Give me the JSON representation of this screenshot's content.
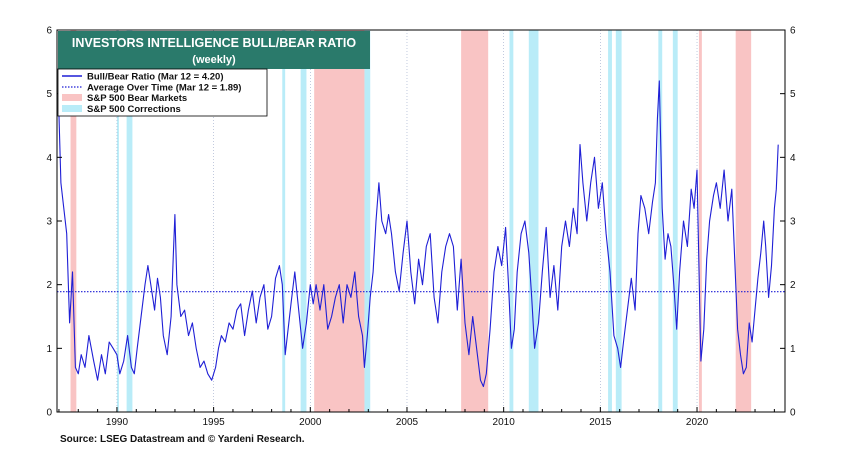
{
  "chart_data": {
    "type": "line",
    "title": "INVESTORS INTELLIGENCE BULL/BEAR RATIO",
    "subtitle": "(weekly)",
    "source": "Source: LSEG Datastream and © Yardeni Research.",
    "xlim": [
      1986.9,
      2024.55
    ],
    "ylim": [
      0,
      6
    ],
    "x_ticks": [
      1990,
      1995,
      2000,
      2005,
      2010,
      2015,
      2020
    ],
    "y_ticks": [
      0,
      1,
      2,
      3,
      4,
      5,
      6
    ],
    "grid": "vertical dotted at year ticks",
    "legend_position": "top-left",
    "legend": [
      {
        "label": "Bull/Bear Ratio (Mar 12 = 4.20)",
        "kind": "line",
        "color": "#1f1fd6"
      },
      {
        "label": "Average Over Time (Mar 12 = 1.89)",
        "kind": "dotted",
        "color": "#1f1fd6"
      },
      {
        "label": "S&P 500 Bear Markets",
        "kind": "band",
        "color": "#f9c4c4"
      },
      {
        "label": "S&P 500 Corrections",
        "kind": "band",
        "color": "#b9ecf8"
      }
    ],
    "series": [
      {
        "name": "Bull/Bear Ratio (Mar 12 = 4.20)",
        "color": "#1f1fd6",
        "points": [
          [
            1987.0,
            4.7
          ],
          [
            1987.1,
            3.6
          ],
          [
            1987.25,
            3.2
          ],
          [
            1987.4,
            2.8
          ],
          [
            1987.55,
            1.4
          ],
          [
            1987.7,
            2.2
          ],
          [
            1987.85,
            0.7
          ],
          [
            1988.0,
            0.6
          ],
          [
            1988.15,
            0.9
          ],
          [
            1988.35,
            0.7
          ],
          [
            1988.55,
            1.2
          ],
          [
            1988.8,
            0.8
          ],
          [
            1989.0,
            0.5
          ],
          [
            1989.2,
            0.9
          ],
          [
            1989.4,
            0.6
          ],
          [
            1989.6,
            1.1
          ],
          [
            1989.8,
            1.0
          ],
          [
            1990.0,
            0.9
          ],
          [
            1990.15,
            0.6
          ],
          [
            1990.35,
            0.8
          ],
          [
            1990.55,
            1.2
          ],
          [
            1990.75,
            0.7
          ],
          [
            1990.9,
            0.6
          ],
          [
            1991.05,
            1.0
          ],
          [
            1991.25,
            1.5
          ],
          [
            1991.45,
            2.0
          ],
          [
            1991.6,
            2.3
          ],
          [
            1991.75,
            2.0
          ],
          [
            1991.95,
            1.6
          ],
          [
            1992.1,
            2.1
          ],
          [
            1992.25,
            1.8
          ],
          [
            1992.4,
            1.2
          ],
          [
            1992.6,
            0.9
          ],
          [
            1992.8,
            1.5
          ],
          [
            1992.92,
            2.5
          ],
          [
            1993.0,
            3.1
          ],
          [
            1993.1,
            2.0
          ],
          [
            1993.3,
            1.5
          ],
          [
            1993.5,
            1.6
          ],
          [
            1993.7,
            1.2
          ],
          [
            1993.9,
            1.4
          ],
          [
            1994.1,
            1.0
          ],
          [
            1994.3,
            0.7
          ],
          [
            1994.5,
            0.8
          ],
          [
            1994.7,
            0.6
          ],
          [
            1994.9,
            0.5
          ],
          [
            1995.1,
            0.7
          ],
          [
            1995.25,
            1.0
          ],
          [
            1995.4,
            1.2
          ],
          [
            1995.6,
            1.1
          ],
          [
            1995.8,
            1.4
          ],
          [
            1996.0,
            1.3
          ],
          [
            1996.2,
            1.6
          ],
          [
            1996.4,
            1.7
          ],
          [
            1996.6,
            1.2
          ],
          [
            1996.8,
            1.6
          ],
          [
            1997.0,
            1.9
          ],
          [
            1997.2,
            1.4
          ],
          [
            1997.4,
            1.8
          ],
          [
            1997.6,
            2.0
          ],
          [
            1997.8,
            1.3
          ],
          [
            1998.0,
            1.5
          ],
          [
            1998.2,
            2.1
          ],
          [
            1998.4,
            2.3
          ],
          [
            1998.55,
            2.0
          ],
          [
            1998.7,
            0.9
          ],
          [
            1998.85,
            1.3
          ],
          [
            1999.0,
            1.7
          ],
          [
            1999.2,
            2.2
          ],
          [
            1999.4,
            1.6
          ],
          [
            1999.6,
            1.0
          ],
          [
            1999.8,
            1.4
          ],
          [
            2000.0,
            2.0
          ],
          [
            2000.15,
            1.7
          ],
          [
            2000.3,
            2.0
          ],
          [
            2000.5,
            1.6
          ],
          [
            2000.7,
            2.0
          ],
          [
            2000.9,
            1.3
          ],
          [
            2001.1,
            1.5
          ],
          [
            2001.3,
            1.8
          ],
          [
            2001.5,
            2.0
          ],
          [
            2001.7,
            1.4
          ],
          [
            2001.9,
            2.0
          ],
          [
            2002.1,
            1.8
          ],
          [
            2002.3,
            2.2
          ],
          [
            2002.5,
            1.5
          ],
          [
            2002.7,
            1.2
          ],
          [
            2002.8,
            0.7
          ],
          [
            2002.95,
            1.2
          ],
          [
            2003.1,
            1.8
          ],
          [
            2003.25,
            2.2
          ],
          [
            2003.4,
            3.0
          ],
          [
            2003.55,
            3.6
          ],
          [
            2003.7,
            3.0
          ],
          [
            2003.9,
            2.8
          ],
          [
            2004.05,
            3.1
          ],
          [
            2004.2,
            2.8
          ],
          [
            2004.4,
            2.2
          ],
          [
            2004.6,
            1.9
          ],
          [
            2004.8,
            2.5
          ],
          [
            2005.0,
            3.0
          ],
          [
            2005.2,
            2.2
          ],
          [
            2005.4,
            1.7
          ],
          [
            2005.6,
            2.4
          ],
          [
            2005.8,
            2.0
          ],
          [
            2006.0,
            2.6
          ],
          [
            2006.2,
            2.8
          ],
          [
            2006.4,
            1.8
          ],
          [
            2006.6,
            1.4
          ],
          [
            2006.8,
            2.2
          ],
          [
            2007.0,
            2.6
          ],
          [
            2007.2,
            2.8
          ],
          [
            2007.4,
            2.6
          ],
          [
            2007.6,
            1.6
          ],
          [
            2007.8,
            2.4
          ],
          [
            2008.0,
            1.4
          ],
          [
            2008.2,
            0.9
          ],
          [
            2008.4,
            1.5
          ],
          [
            2008.6,
            1.0
          ],
          [
            2008.8,
            0.5
          ],
          [
            2008.95,
            0.4
          ],
          [
            2009.1,
            0.6
          ],
          [
            2009.3,
            1.3
          ],
          [
            2009.5,
            2.2
          ],
          [
            2009.7,
            2.6
          ],
          [
            2009.9,
            2.3
          ],
          [
            2010.1,
            2.9
          ],
          [
            2010.25,
            2.0
          ],
          [
            2010.4,
            1.0
          ],
          [
            2010.55,
            1.3
          ],
          [
            2010.7,
            2.2
          ],
          [
            2010.9,
            2.8
          ],
          [
            2011.1,
            3.0
          ],
          [
            2011.3,
            2.5
          ],
          [
            2011.45,
            1.8
          ],
          [
            2011.6,
            1.0
          ],
          [
            2011.8,
            1.4
          ],
          [
            2012.0,
            2.2
          ],
          [
            2012.2,
            2.9
          ],
          [
            2012.4,
            1.8
          ],
          [
            2012.6,
            2.3
          ],
          [
            2012.8,
            1.6
          ],
          [
            2013.0,
            2.6
          ],
          [
            2013.2,
            3.0
          ],
          [
            2013.4,
            2.6
          ],
          [
            2013.6,
            3.2
          ],
          [
            2013.8,
            2.8
          ],
          [
            2013.95,
            4.2
          ],
          [
            2014.1,
            3.6
          ],
          [
            2014.3,
            3.0
          ],
          [
            2014.5,
            3.6
          ],
          [
            2014.7,
            4.0
          ],
          [
            2014.9,
            3.2
          ],
          [
            2015.1,
            3.6
          ],
          [
            2015.3,
            2.8
          ],
          [
            2015.5,
            2.2
          ],
          [
            2015.7,
            1.2
          ],
          [
            2015.9,
            1.0
          ],
          [
            2016.05,
            0.7
          ],
          [
            2016.2,
            1.1
          ],
          [
            2016.4,
            1.6
          ],
          [
            2016.6,
            2.1
          ],
          [
            2016.8,
            1.6
          ],
          [
            2016.95,
            2.8
          ],
          [
            2017.1,
            3.4
          ],
          [
            2017.3,
            3.2
          ],
          [
            2017.5,
            2.8
          ],
          [
            2017.7,
            3.3
          ],
          [
            2017.85,
            3.6
          ],
          [
            2017.95,
            4.6
          ],
          [
            2018.05,
            5.2
          ],
          [
            2018.2,
            3.2
          ],
          [
            2018.35,
            2.4
          ],
          [
            2018.5,
            2.8
          ],
          [
            2018.65,
            2.6
          ],
          [
            2018.8,
            2.0
          ],
          [
            2018.95,
            1.3
          ],
          [
            2019.1,
            2.2
          ],
          [
            2019.3,
            3.0
          ],
          [
            2019.5,
            2.6
          ],
          [
            2019.7,
            3.5
          ],
          [
            2019.85,
            3.2
          ],
          [
            2020.0,
            3.8
          ],
          [
            2020.12,
            2.0
          ],
          [
            2020.2,
            0.8
          ],
          [
            2020.35,
            1.3
          ],
          [
            2020.5,
            2.4
          ],
          [
            2020.65,
            3.0
          ],
          [
            2020.85,
            3.4
          ],
          [
            2021.0,
            3.6
          ],
          [
            2021.2,
            3.2
          ],
          [
            2021.4,
            3.8
          ],
          [
            2021.6,
            3.0
          ],
          [
            2021.8,
            3.5
          ],
          [
            2021.95,
            2.4
          ],
          [
            2022.1,
            1.3
          ],
          [
            2022.25,
            0.9
          ],
          [
            2022.4,
            0.6
          ],
          [
            2022.55,
            0.7
          ],
          [
            2022.7,
            1.4
          ],
          [
            2022.85,
            1.1
          ],
          [
            2023.0,
            1.6
          ],
          [
            2023.15,
            2.1
          ],
          [
            2023.3,
            2.5
          ],
          [
            2023.45,
            3.0
          ],
          [
            2023.55,
            2.6
          ],
          [
            2023.7,
            1.8
          ],
          [
            2023.85,
            2.3
          ],
          [
            2024.0,
            3.2
          ],
          [
            2024.1,
            3.5
          ],
          [
            2024.2,
            4.2
          ]
        ]
      },
      {
        "name": "Average Over Time (Mar 12 = 1.89)",
        "color": "#1f1fd6",
        "style": "dotted",
        "x": [
          1986.9,
          2024.55
        ],
        "y": [
          1.89,
          1.89
        ]
      }
    ],
    "bear_markets": [
      [
        1987.6,
        1987.9
      ],
      [
        2000.2,
        2002.8
      ],
      [
        2007.8,
        2009.2
      ],
      [
        2020.1,
        2020.25
      ],
      [
        2022.0,
        2022.8
      ]
    ],
    "corrections": [
      [
        1990.0,
        1990.05
      ],
      [
        1990.5,
        1990.8
      ],
      [
        1998.55,
        1998.7
      ],
      [
        1999.5,
        1999.8
      ],
      [
        2002.8,
        2003.1
      ],
      [
        2010.3,
        2010.5
      ],
      [
        2011.3,
        2011.8
      ],
      [
        2015.4,
        2015.6
      ],
      [
        2015.8,
        2016.1
      ],
      [
        2018.0,
        2018.2
      ],
      [
        2018.75,
        2019.0
      ]
    ],
    "colors": {
      "line": "#1f1fd6",
      "bear_band": "#f9c4c4",
      "correction_band": "#b9ecf8",
      "title_bg": "#2a7a6b",
      "grid": "#9aa8c8"
    }
  }
}
